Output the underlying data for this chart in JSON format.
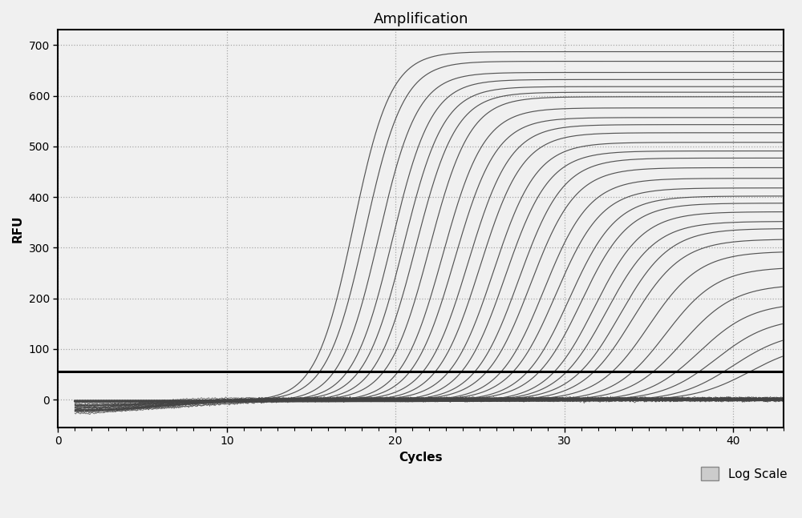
{
  "title": "Amplification",
  "xlabel": "Cycles",
  "ylabel": "RFU",
  "xlim": [
    0,
    43
  ],
  "ylim": [
    -55,
    730
  ],
  "xticks": [
    0,
    10,
    20,
    30,
    40
  ],
  "yticks": [
    0,
    100,
    200,
    300,
    400,
    500,
    600,
    700
  ],
  "threshold_y": 55,
  "background_color": "#f0f0f0",
  "line_color": "#444444",
  "threshold_color": "#000000",
  "grid_color": "#888888",
  "title_fontsize": 13,
  "label_fontsize": 11,
  "curve_params": [
    {
      "ct": 17.5,
      "ymax": 690,
      "slope": 0.9,
      "baseline": -3
    },
    {
      "ct": 18.2,
      "ymax": 670,
      "slope": 0.88,
      "baseline": -2
    },
    {
      "ct": 19.0,
      "ymax": 650,
      "slope": 0.87,
      "baseline": -4
    },
    {
      "ct": 19.8,
      "ymax": 635,
      "slope": 0.86,
      "baseline": -3
    },
    {
      "ct": 20.5,
      "ymax": 620,
      "slope": 0.85,
      "baseline": -2
    },
    {
      "ct": 21.2,
      "ymax": 610,
      "slope": 0.84,
      "baseline": -3
    },
    {
      "ct": 22.0,
      "ymax": 600,
      "slope": 0.83,
      "baseline": -2
    },
    {
      "ct": 22.8,
      "ymax": 580,
      "slope": 0.82,
      "baseline": -4
    },
    {
      "ct": 23.5,
      "ymax": 560,
      "slope": 0.81,
      "baseline": -3
    },
    {
      "ct": 24.3,
      "ymax": 545,
      "slope": 0.8,
      "baseline": -2
    },
    {
      "ct": 25.0,
      "ymax": 530,
      "slope": 0.79,
      "baseline": -3
    },
    {
      "ct": 25.8,
      "ymax": 510,
      "slope": 0.78,
      "baseline": -2
    },
    {
      "ct": 26.5,
      "ymax": 495,
      "slope": 0.77,
      "baseline": -4
    },
    {
      "ct": 27.3,
      "ymax": 480,
      "slope": 0.76,
      "baseline": -3
    },
    {
      "ct": 28.0,
      "ymax": 460,
      "slope": 0.75,
      "baseline": -2
    },
    {
      "ct": 28.8,
      "ymax": 440,
      "slope": 0.74,
      "baseline": -3
    },
    {
      "ct": 29.5,
      "ymax": 420,
      "slope": 0.73,
      "baseline": -2
    },
    {
      "ct": 30.3,
      "ymax": 405,
      "slope": 0.72,
      "baseline": -3
    },
    {
      "ct": 31.0,
      "ymax": 390,
      "slope": 0.71,
      "baseline": -2
    },
    {
      "ct": 31.8,
      "ymax": 375,
      "slope": 0.7,
      "baseline": -4
    },
    {
      "ct": 32.5,
      "ymax": 355,
      "slope": 0.69,
      "baseline": -3
    },
    {
      "ct": 33.3,
      "ymax": 340,
      "slope": 0.68,
      "baseline": -2
    },
    {
      "ct": 34.0,
      "ymax": 320,
      "slope": 0.67,
      "baseline": -3
    },
    {
      "ct": 35.0,
      "ymax": 295,
      "slope": 0.66,
      "baseline": -2
    },
    {
      "ct": 36.0,
      "ymax": 265,
      "slope": 0.65,
      "baseline": -3
    },
    {
      "ct": 37.0,
      "ymax": 230,
      "slope": 0.64,
      "baseline": -2
    },
    {
      "ct": 38.0,
      "ymax": 195,
      "slope": 0.63,
      "baseline": -3
    },
    {
      "ct": 39.0,
      "ymax": 165,
      "slope": 0.62,
      "baseline": -2
    },
    {
      "ct": 40.0,
      "ymax": 140,
      "slope": 0.61,
      "baseline": -3
    },
    {
      "ct": 41.0,
      "ymax": 115,
      "slope": 0.6,
      "baseline": -2
    }
  ],
  "legend_patch_color": "#cccccc",
  "legend_patch_edge": "#888888"
}
